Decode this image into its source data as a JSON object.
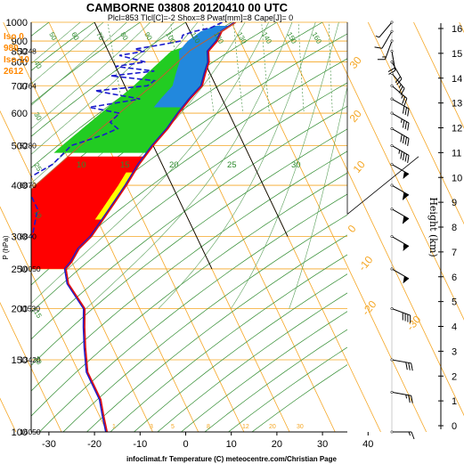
{
  "header": {
    "title": "CAMBORNE 03808 20120410 00 UTC",
    "subtitle": "Plcl=853 Tlcl[C]=-2 Shox=8 Pwat[mm]=8 Cape[J]= 0"
  },
  "side_info": [
    "Iso 0",
    "980",
    "Iso-10",
    "2612"
  ],
  "footer": "infoclimat.fr Temperature (C) meteocentre.com/Christian Page",
  "colors": {
    "isobar": "#f5a623",
    "dry_adiabat": "#2e8b2e",
    "mixing_ratio": "#3c8c3c",
    "temperature": "#e01010",
    "dewpoint": "#1a1acc",
    "dewpoint_dash": "#1a1acc",
    "cape_fill": "#ff0000",
    "fill_green": "#22cc22",
    "fill_blue": "#2288dd",
    "fill_yellow": "#ffff00",
    "side_text": "#ff8800"
  },
  "chart_data": {
    "type": "skew-t",
    "ylabel": "P (hPa)",
    "y2label": "Height (km)",
    "xlabel": "Temperature (C)",
    "pressure_ticks": [
      100,
      150,
      200,
      250,
      300,
      400,
      500,
      600,
      700,
      800,
      850,
      900,
      1000
    ],
    "temperature_ticks": [
      -30,
      -20,
      -10,
      0,
      10,
      20,
      30,
      40
    ],
    "height_ticks": [
      0,
      1,
      2,
      3,
      4,
      5,
      6,
      7,
      8,
      9,
      10,
      11,
      12,
      13,
      14,
      15,
      16
    ],
    "geopotential_labels": [
      {
        "p": 100,
        "label": "16050"
      },
      {
        "p": 150,
        "label": "13420"
      },
      {
        "p": 200,
        "label": "11530"
      },
      {
        "p": 250,
        "label": "10050"
      },
      {
        "p": 300,
        "label": "8840"
      },
      {
        "p": 400,
        "label": "6870"
      },
      {
        "p": 500,
        "label": "5280"
      },
      {
        "p": 700,
        "label": "2764"
      },
      {
        "p": 850,
        "label": "1248"
      }
    ],
    "mixing_ratio_labels": [
      "1",
      "3",
      "5",
      "8",
      "12",
      "20",
      "30"
    ],
    "adiabat_labels": [
      "10",
      "15",
      "20",
      "25",
      "30"
    ],
    "theta_labels": [
      "50",
      "60",
      "70",
      "80",
      "90",
      "100",
      "110",
      "120",
      "130",
      "140",
      "150",
      "160"
    ],
    "orange_labels": [
      "30",
      "20",
      "10",
      "0",
      "-10",
      "-20",
      "-30"
    ],
    "left_theta_labels": [
      "40",
      "30",
      "25",
      "10",
      "15",
      "20"
    ],
    "temperature_profile": [
      {
        "p": 1000,
        "t": 11
      },
      {
        "p": 950,
        "t": 7
      },
      {
        "p": 900,
        "t": 5
      },
      {
        "p": 850,
        "t": 2
      },
      {
        "p": 800,
        "t": 1
      },
      {
        "p": 750,
        "t": -1
      },
      {
        "p": 700,
        "t": -3
      },
      {
        "p": 650,
        "t": -7
      },
      {
        "p": 600,
        "t": -11
      },
      {
        "p": 550,
        "t": -15
      },
      {
        "p": 500,
        "t": -20
      },
      {
        "p": 450,
        "t": -25
      },
      {
        "p": 400,
        "t": -30
      },
      {
        "p": 350,
        "t": -36
      },
      {
        "p": 300,
        "t": -43
      },
      {
        "p": 280,
        "t": -47
      },
      {
        "p": 260,
        "t": -50
      },
      {
        "p": 250,
        "t": -52
      },
      {
        "p": 230,
        "t": -53
      },
      {
        "p": 200,
        "t": -52
      },
      {
        "p": 180,
        "t": -54
      },
      {
        "p": 160,
        "t": -56
      },
      {
        "p": 140,
        "t": -58
      },
      {
        "p": 120,
        "t": -58
      },
      {
        "p": 110,
        "t": -59
      },
      {
        "p": 100,
        "t": -60
      }
    ],
    "dewpoint_profile": [
      {
        "p": 1000,
        "td": 8
      },
      {
        "p": 970,
        "td": 5
      },
      {
        "p": 950,
        "td": 1
      },
      {
        "p": 930,
        "td": -2
      },
      {
        "p": 900,
        "td": -3
      },
      {
        "p": 880,
        "td": -8
      },
      {
        "p": 860,
        "td": -14
      },
      {
        "p": 850,
        "td": -12
      },
      {
        "p": 830,
        "td": -18
      },
      {
        "p": 800,
        "td": -13
      },
      {
        "p": 780,
        "td": -20
      },
      {
        "p": 760,
        "td": -12
      },
      {
        "p": 740,
        "td": -22
      },
      {
        "p": 720,
        "td": -13
      },
      {
        "p": 700,
        "td": -15
      },
      {
        "p": 680,
        "td": -27
      },
      {
        "p": 650,
        "td": -18
      },
      {
        "p": 620,
        "td": -30
      },
      {
        "p": 600,
        "td": -24
      },
      {
        "p": 570,
        "td": -27
      },
      {
        "p": 550,
        "td": -26
      },
      {
        "p": 530,
        "td": -30
      },
      {
        "p": 500,
        "td": -38
      },
      {
        "p": 450,
        "td": -44
      },
      {
        "p": 420,
        "td": -50
      },
      {
        "p": 400,
        "td": -52
      },
      {
        "p": 350,
        "td": -52
      },
      {
        "p": 300,
        "td": -56
      },
      {
        "p": 250,
        "td": -66
      },
      {
        "p": 200,
        "td": -74
      },
      {
        "p": 150,
        "td": -78
      },
      {
        "p": 120,
        "td": -84
      },
      {
        "p": 100,
        "td": -84
      }
    ],
    "parcel_profile": [
      {
        "p": 1000,
        "t": 11
      },
      {
        "p": 853,
        "t": -2
      },
      {
        "p": 700,
        "t": -14
      },
      {
        "p": 500,
        "t": -36
      },
      {
        "p": 400,
        "t": -50
      },
      {
        "p": 300,
        "t": -66
      },
      {
        "p": 250,
        "t": -76
      }
    ],
    "wind_barbs": [
      {
        "p": 1000,
        "dir": 40,
        "spd": 5
      },
      {
        "p": 950,
        "dir": 30,
        "spd": 10
      },
      {
        "p": 900,
        "dir": 20,
        "spd": 15
      },
      {
        "p": 850,
        "dir": 350,
        "spd": 20
      },
      {
        "p": 800,
        "dir": 330,
        "spd": 20
      },
      {
        "p": 750,
        "dir": 320,
        "spd": 25
      },
      {
        "p": 700,
        "dir": 310,
        "spd": 25
      },
      {
        "p": 650,
        "dir": 300,
        "spd": 30
      },
      {
        "p": 600,
        "dir": 300,
        "spd": 35
      },
      {
        "p": 550,
        "dir": 300,
        "spd": 40
      },
      {
        "p": 500,
        "dir": 300,
        "spd": 45
      },
      {
        "p": 450,
        "dir": 300,
        "spd": 50
      },
      {
        "p": 400,
        "dir": 300,
        "spd": 60
      },
      {
        "p": 350,
        "dir": 300,
        "spd": 60
      },
      {
        "p": 300,
        "dir": 300,
        "spd": 55
      },
      {
        "p": 250,
        "dir": 300,
        "spd": 50
      },
      {
        "p": 200,
        "dir": 290,
        "spd": 40
      },
      {
        "p": 150,
        "dir": 280,
        "spd": 30
      },
      {
        "p": 125,
        "dir": 280,
        "spd": 25
      },
      {
        "p": 100,
        "dir": 270,
        "spd": 15
      }
    ]
  }
}
